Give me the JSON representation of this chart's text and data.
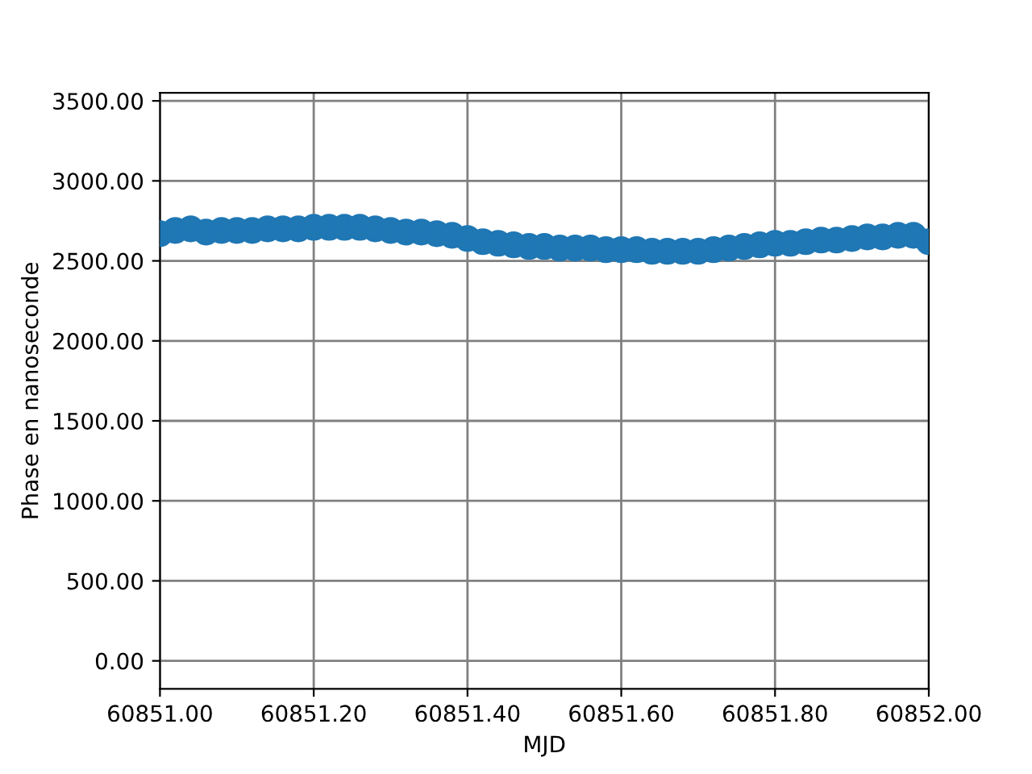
{
  "chart_data": {
    "type": "scatter",
    "xlabel": "MJD",
    "ylabel": "Phase en nanoseconde",
    "x": [
      60851.0,
      60851.02,
      60851.04,
      60851.06,
      60851.08,
      60851.1,
      60851.12,
      60851.14,
      60851.16,
      60851.18,
      60851.2,
      60851.22,
      60851.24,
      60851.26,
      60851.28,
      60851.3,
      60851.32,
      60851.34,
      60851.36,
      60851.38,
      60851.4,
      60851.42,
      60851.44,
      60851.46,
      60851.48,
      60851.5,
      60851.52,
      60851.54,
      60851.56,
      60851.58,
      60851.6,
      60851.62,
      60851.64,
      60851.66,
      60851.68,
      60851.7,
      60851.72,
      60851.74,
      60851.76,
      60851.78,
      60851.8,
      60851.82,
      60851.84,
      60851.86,
      60851.88,
      60851.9,
      60851.92,
      60851.94,
      60851.96,
      60851.98,
      60852.0
    ],
    "series": [
      {
        "color": "#1f77b4",
        "values": [
          2670,
          2690,
          2700,
          2680,
          2690,
          2690,
          2690,
          2700,
          2700,
          2700,
          2710,
          2710,
          2710,
          2710,
          2700,
          2690,
          2680,
          2680,
          2670,
          2660,
          2640,
          2620,
          2610,
          2600,
          2590,
          2590,
          2580,
          2580,
          2580,
          2570,
          2570,
          2570,
          2560,
          2560,
          2560,
          2560,
          2570,
          2580,
          2590,
          2600,
          2610,
          2610,
          2620,
          2630,
          2630,
          2640,
          2650,
          2650,
          2660,
          2660,
          2620
        ]
      }
    ],
    "xlim": [
      60851.0,
      60852.0
    ],
    "xticks": [
      {
        "value": 60851.0,
        "label": "60851.00"
      },
      {
        "value": 60851.2,
        "label": "60851.20"
      },
      {
        "value": 60851.4,
        "label": "60851.40"
      },
      {
        "value": 60851.6,
        "label": "60851.60"
      },
      {
        "value": 60851.8,
        "label": "60851.80"
      },
      {
        "value": 60852.0,
        "label": "60852.00"
      }
    ],
    "ylim": [
      -175,
      3550
    ],
    "yticks": [
      {
        "value": 0,
        "label": "0.00"
      },
      {
        "value": 500,
        "label": "500.00"
      },
      {
        "value": 1000,
        "label": "1000.00"
      },
      {
        "value": 1500,
        "label": "1500.00"
      },
      {
        "value": 2000,
        "label": "2000.00"
      },
      {
        "value": 2500,
        "label": "2500.00"
      },
      {
        "value": 3000,
        "label": "3000.00"
      },
      {
        "value": 3500,
        "label": "3500.00"
      }
    ],
    "grid": true,
    "marker": "circle"
  }
}
